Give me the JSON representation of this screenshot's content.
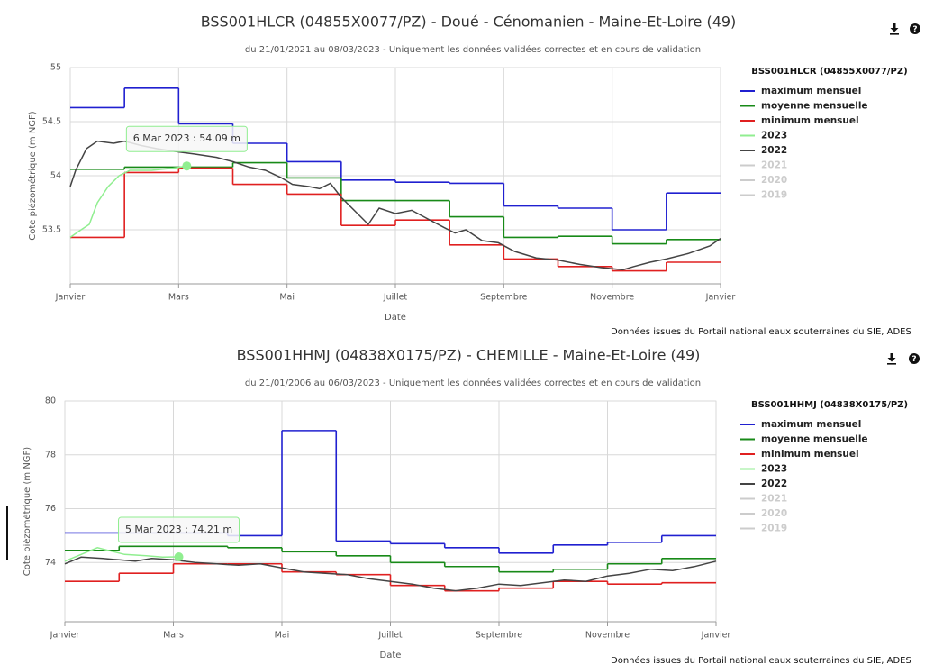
{
  "chart_data": [
    {
      "type": "line",
      "title": "BSS001HLCR (04855X0077/PZ) - Doué - Cénomanien - Maine-Et-Loire (49)",
      "subtitle": "du 21/01/2021 au 08/03/2023 - Uniquement les données validées correctes et en cours de validation",
      "xlabel": "Date",
      "ylabel": "Cote piézométrique (m NGF)",
      "legend_title": "BSS001HLCR (04855X0077/PZ)",
      "source": "Données issues du Portail national eaux souterraines du SIE, ADES",
      "xlim": [
        0,
        12
      ],
      "xticks": [
        {
          "value": 0,
          "label": "Janvier"
        },
        {
          "value": 2,
          "label": "Mars"
        },
        {
          "value": 4,
          "label": "Mai"
        },
        {
          "value": 6,
          "label": "Juillet"
        },
        {
          "value": 8,
          "label": "Septembre"
        },
        {
          "value": 10,
          "label": "Novembre"
        },
        {
          "value": 12,
          "label": "Janvier"
        }
      ],
      "ylim": [
        53,
        55
      ],
      "yticks": [
        53.5,
        54,
        54.5,
        55
      ],
      "grid": true,
      "series": [
        {
          "name": "maximum mensuel",
          "color": "#2020d0",
          "step": true,
          "x": [
            0,
            1,
            2,
            3,
            4,
            5,
            6,
            7,
            8,
            9,
            10,
            11
          ],
          "values": [
            54.63,
            54.81,
            54.48,
            54.3,
            54.13,
            53.96,
            53.94,
            53.93,
            53.72,
            53.7,
            53.5,
            53.84
          ]
        },
        {
          "name": "moyenne mensuelle",
          "color": "#188a18",
          "step": true,
          "x": [
            0,
            1,
            2,
            3,
            4,
            5,
            6,
            7,
            8,
            9,
            10,
            11
          ],
          "values": [
            54.06,
            54.08,
            54.08,
            54.12,
            53.98,
            53.77,
            53.77,
            53.62,
            53.43,
            53.44,
            53.37,
            53.41
          ]
        },
        {
          "name": "minimum mensuel",
          "color": "#e02020",
          "step": true,
          "x": [
            0,
            1,
            2,
            3,
            4,
            5,
            6,
            7,
            8,
            9,
            10,
            11
          ],
          "values": [
            53.43,
            54.03,
            54.07,
            53.92,
            53.83,
            53.54,
            53.59,
            53.36,
            53.23,
            53.16,
            53.12,
            53.2
          ]
        },
        {
          "name": "2023",
          "color": "#90ee90",
          "x": [
            0,
            0.2,
            0.35,
            0.5,
            0.7,
            0.9,
            1.1,
            1.5,
            1.9,
            2.15
          ],
          "values": [
            53.43,
            53.5,
            53.55,
            53.75,
            53.9,
            54.0,
            54.05,
            54.05,
            54.07,
            54.09
          ]
        },
        {
          "name": "2022",
          "color": "#444444",
          "x": [
            0,
            0.1,
            0.3,
            0.5,
            0.8,
            1.0,
            1.3,
            1.6,
            2.0,
            2.3,
            2.7,
            3.0,
            3.3,
            3.6,
            3.9,
            4.1,
            4.4,
            4.6,
            4.8,
            5.0,
            5.3,
            5.5,
            5.7,
            6.0,
            6.3,
            6.6,
            6.9,
            7.1,
            7.3,
            7.6,
            7.9,
            8.2,
            8.6,
            9.0,
            9.4,
            9.8,
            10.2,
            10.4,
            10.7,
            11.0,
            11.4,
            11.8,
            12
          ],
          "values": [
            53.9,
            54.05,
            54.25,
            54.32,
            54.3,
            54.32,
            54.28,
            54.25,
            54.22,
            54.2,
            54.17,
            54.13,
            54.08,
            54.05,
            53.98,
            53.92,
            53.9,
            53.88,
            53.93,
            53.8,
            53.65,
            53.55,
            53.7,
            53.65,
            53.68,
            53.6,
            53.52,
            53.47,
            53.5,
            53.4,
            53.38,
            53.3,
            53.24,
            53.22,
            53.18,
            53.15,
            53.13,
            53.16,
            53.2,
            53.23,
            53.28,
            53.35,
            53.42
          ]
        },
        {
          "name": "2021",
          "color": "#cccccc",
          "visible": false,
          "x": [],
          "values": []
        },
        {
          "name": "2020",
          "color": "#cccccc",
          "visible": false,
          "x": [],
          "values": []
        },
        {
          "name": "2019",
          "color": "#cccccc",
          "visible": false,
          "x": [],
          "values": []
        }
      ],
      "annotation": {
        "text": "6 Mar 2023 : 54.09 m",
        "x": 2.15,
        "value": 54.09
      }
    },
    {
      "type": "line",
      "title": "BSS001HHMJ (04838X0175/PZ) - CHEMILLE - Maine-Et-Loire (49)",
      "subtitle": "du 21/01/2006 au 06/03/2023 - Uniquement les données validées correctes et en cours de validation",
      "xlabel": "Date",
      "ylabel": "Cote piézométrique (m NGF)",
      "legend_title": "BSS001HHMJ (04838X0175/PZ)",
      "source": "Données issues du Portail national eaux souterraines du SIE, ADES",
      "xlim": [
        0,
        12
      ],
      "xticks": [
        {
          "value": 0,
          "label": "Janvier"
        },
        {
          "value": 2,
          "label": "Mars"
        },
        {
          "value": 4,
          "label": "Mai"
        },
        {
          "value": 6,
          "label": "Juillet"
        },
        {
          "value": 8,
          "label": "Septembre"
        },
        {
          "value": 10,
          "label": "Novembre"
        },
        {
          "value": 12,
          "label": "Janvier"
        }
      ],
      "ylim": [
        71.8,
        80
      ],
      "yticks": [
        74,
        76,
        78,
        80
      ],
      "grid": true,
      "series": [
        {
          "name": "maximum mensuel",
          "color": "#2020d0",
          "step": true,
          "x": [
            0,
            1,
            2,
            3,
            4,
            5,
            6,
            7,
            8,
            9,
            10,
            11
          ],
          "values": [
            75.1,
            75.1,
            75.1,
            75.0,
            78.9,
            74.8,
            74.7,
            74.55,
            74.35,
            74.65,
            74.75,
            75.0
          ]
        },
        {
          "name": "moyenne mensuelle",
          "color": "#188a18",
          "step": true,
          "x": [
            0,
            1,
            2,
            3,
            4,
            5,
            6,
            7,
            8,
            9,
            10,
            11
          ],
          "values": [
            74.45,
            74.6,
            74.6,
            74.55,
            74.4,
            74.25,
            74.0,
            73.85,
            73.65,
            73.75,
            73.95,
            74.15
          ]
        },
        {
          "name": "minimum mensuel",
          "color": "#e02020",
          "step": true,
          "x": [
            0,
            1,
            2,
            3,
            4,
            5,
            6,
            7,
            8,
            9,
            10,
            11
          ],
          "values": [
            73.3,
            73.6,
            73.95,
            73.95,
            73.65,
            73.55,
            73.15,
            72.95,
            73.05,
            73.3,
            73.2,
            73.25
          ]
        },
        {
          "name": "2023",
          "color": "#90ee90",
          "x": [
            0,
            0.3,
            0.6,
            0.8,
            1.1,
            1.5,
            1.8,
            2.1
          ],
          "values": [
            74.05,
            74.3,
            74.55,
            74.45,
            74.3,
            74.25,
            74.2,
            74.21
          ]
        },
        {
          "name": "2022",
          "color": "#444444",
          "x": [
            0,
            0.3,
            0.7,
            1.0,
            1.3,
            1.6,
            2.0,
            2.4,
            2.8,
            3.2,
            3.6,
            4.0,
            4.4,
            4.8,
            5.2,
            5.6,
            6.0,
            6.4,
            6.8,
            7.2,
            7.6,
            8.0,
            8.4,
            8.8,
            9.2,
            9.6,
            10.0,
            10.4,
            10.8,
            11.2,
            11.6,
            12
          ],
          "values": [
            73.95,
            74.2,
            74.15,
            74.1,
            74.05,
            74.15,
            74.1,
            74.0,
            73.95,
            73.9,
            73.95,
            73.8,
            73.65,
            73.6,
            73.55,
            73.4,
            73.3,
            73.2,
            73.05,
            72.95,
            73.05,
            73.2,
            73.15,
            73.25,
            73.35,
            73.3,
            73.5,
            73.6,
            73.75,
            73.7,
            73.85,
            74.05
          ]
        },
        {
          "name": "2021",
          "color": "#cccccc",
          "visible": false,
          "x": [],
          "values": []
        },
        {
          "name": "2020",
          "color": "#cccccc",
          "visible": false,
          "x": [],
          "values": []
        },
        {
          "name": "2019",
          "color": "#cccccc",
          "visible": false,
          "x": [],
          "values": []
        }
      ],
      "annotation": {
        "text": "5 Mar 2023 : 74.21 m",
        "x": 2.1,
        "value": 74.21
      }
    }
  ]
}
